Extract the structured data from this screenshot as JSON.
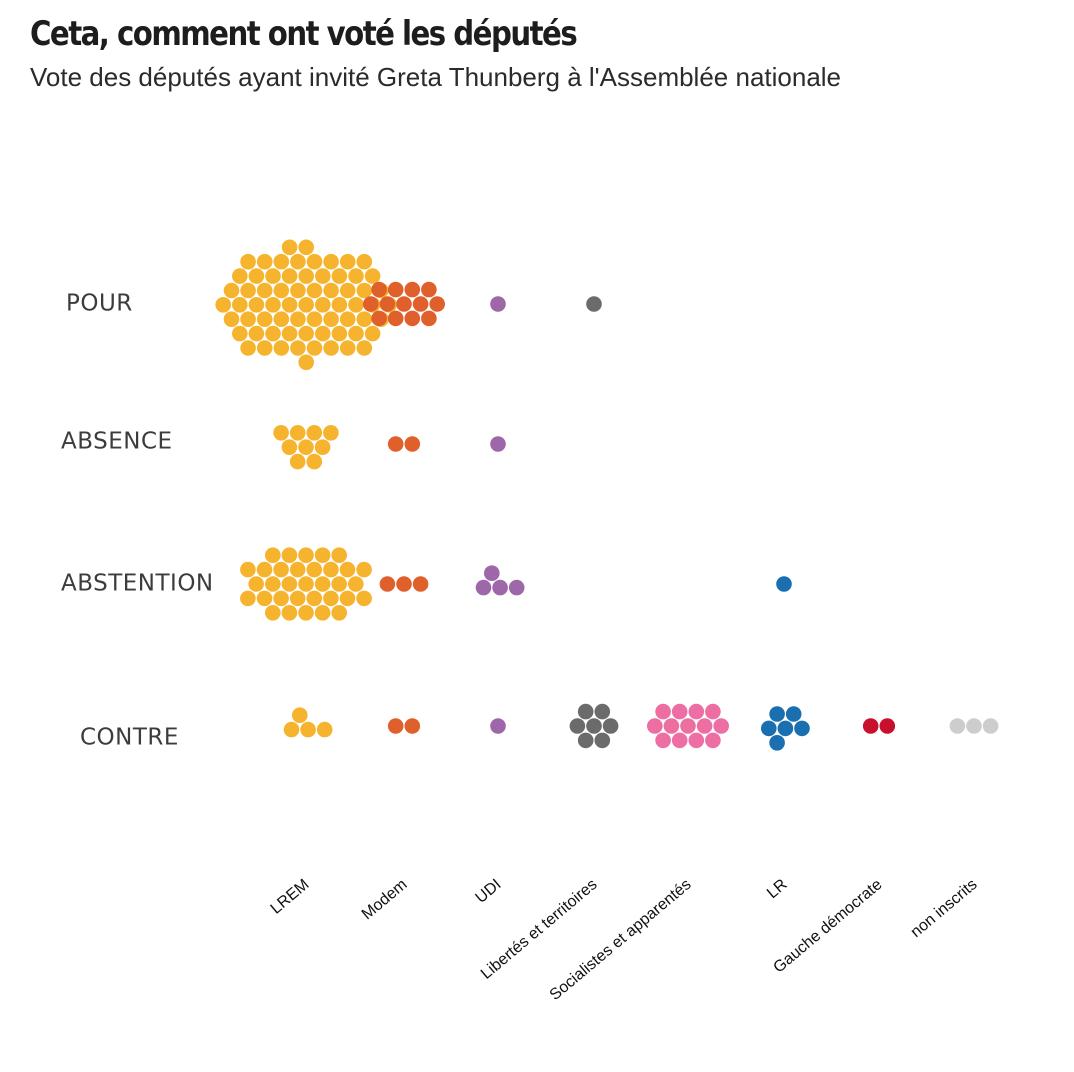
{
  "title": "Ceta, comment ont voté les députés",
  "subtitle": "Vote des députés ayant invité Greta Thunberg à l'Assemblée nationale",
  "chart_data": {
    "type": "beeswarm",
    "rows": [
      "POUR",
      "ABSENCE",
      "ABSTENTION",
      "CONTRE"
    ],
    "categories": [
      "LREM",
      "Modem",
      "UDI",
      "Libertés et territoires",
      "Socialistes et apparentés",
      "LR",
      "Gauche démocrate",
      "non inscrits"
    ],
    "colors": {
      "LREM": "#f6b42e",
      "Modem": "#e0602b",
      "UDI": "#9e67aa",
      "Libertés et territoires": "#6b6b6b",
      "Socialistes et apparentés": "#ec6ea3",
      "LR": "#1a6fb0",
      "Gauche démocrate": "#c8102e",
      "non inscrits": "#cdcdcd"
    },
    "counts": [
      {
        "row": "POUR",
        "values": [
          68,
          13,
          1,
          1,
          0,
          0,
          0,
          0
        ]
      },
      {
        "row": "ABSENCE",
        "values": [
          9,
          2,
          1,
          0,
          0,
          0,
          0,
          0
        ]
      },
      {
        "row": "ABSTENTION",
        "values": [
          33,
          3,
          4,
          0,
          0,
          1,
          0,
          0
        ]
      },
      {
        "row": "CONTRE",
        "values": [
          4,
          2,
          1,
          7,
          13,
          6,
          2,
          3
        ]
      }
    ],
    "unit": "député"
  }
}
